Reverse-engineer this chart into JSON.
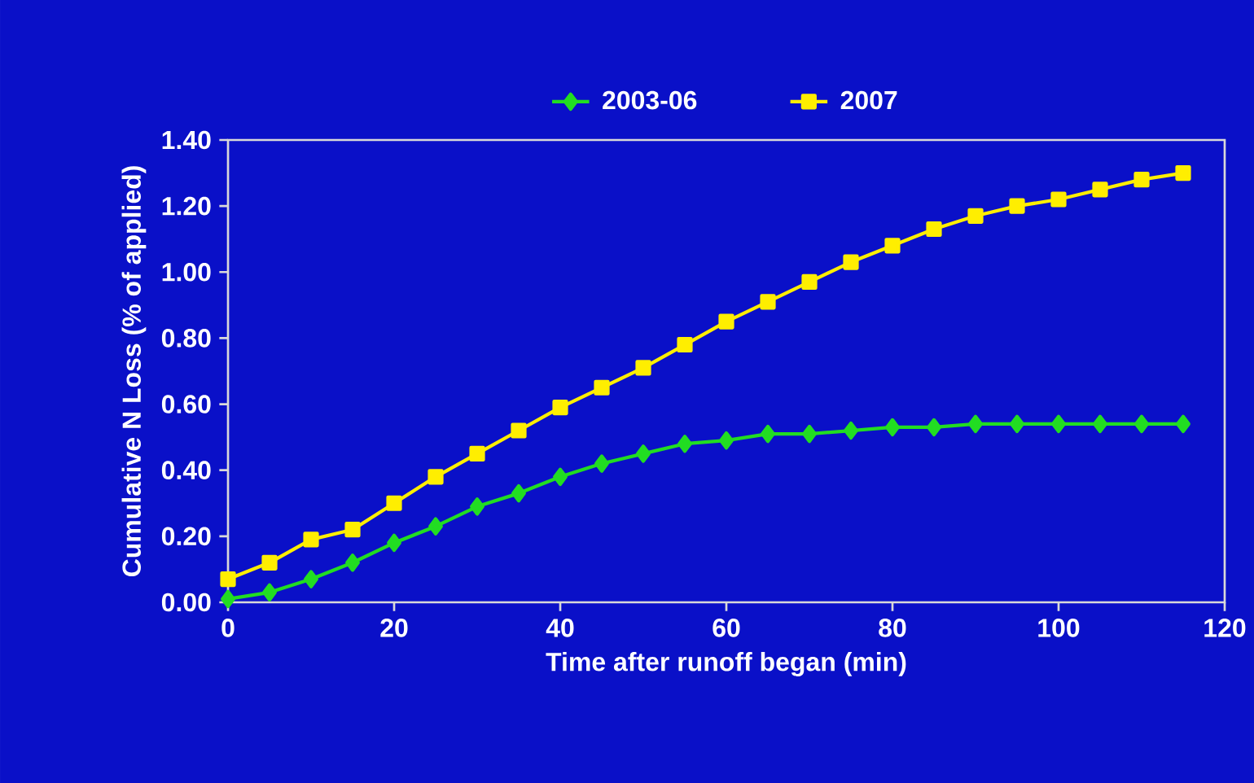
{
  "chart_data": {
    "type": "line",
    "xlabel": "Time after runoff began (min)",
    "ylabel": "Cumulative N Loss (% of applied)",
    "x": [
      0,
      5,
      10,
      15,
      20,
      25,
      30,
      35,
      40,
      45,
      50,
      55,
      60,
      65,
      70,
      75,
      80,
      85,
      90,
      95,
      100,
      105,
      110,
      115
    ],
    "series": [
      {
        "name": "2003-06",
        "color": "#22dd22",
        "marker": "diamond",
        "values": [
          0.01,
          0.03,
          0.07,
          0.12,
          0.18,
          0.23,
          0.29,
          0.33,
          0.38,
          0.42,
          0.45,
          0.48,
          0.49,
          0.51,
          0.51,
          0.52,
          0.53,
          0.53,
          0.54,
          0.54,
          0.54,
          0.54,
          0.54,
          0.54
        ]
      },
      {
        "name": "2007",
        "color": "#ffee00",
        "marker": "square",
        "values": [
          0.07,
          0.12,
          0.19,
          0.22,
          0.3,
          0.38,
          0.45,
          0.52,
          0.59,
          0.65,
          0.71,
          0.78,
          0.85,
          0.91,
          0.97,
          1.03,
          1.08,
          1.13,
          1.17,
          1.2,
          1.22,
          1.25,
          1.28,
          1.3
        ]
      }
    ],
    "xlim": [
      0,
      120
    ],
    "xticks": [
      0,
      20,
      40,
      60,
      80,
      100,
      120
    ],
    "ylim": [
      0,
      1.4
    ],
    "yticks": [
      {
        "value": 0,
        "label": "0.00"
      },
      {
        "value": 0.2,
        "label": "0.20"
      },
      {
        "value": 0.4,
        "label": "0.40"
      },
      {
        "value": 0.6,
        "label": "0.60"
      },
      {
        "value": 0.8,
        "label": "0.80"
      },
      {
        "value": 1.0,
        "label": "1.00"
      },
      {
        "value": 1.2,
        "label": "1.20"
      },
      {
        "value": 1.4,
        "label": "1.40"
      }
    ],
    "grid": false,
    "legend": "top",
    "line_style": "solid"
  }
}
